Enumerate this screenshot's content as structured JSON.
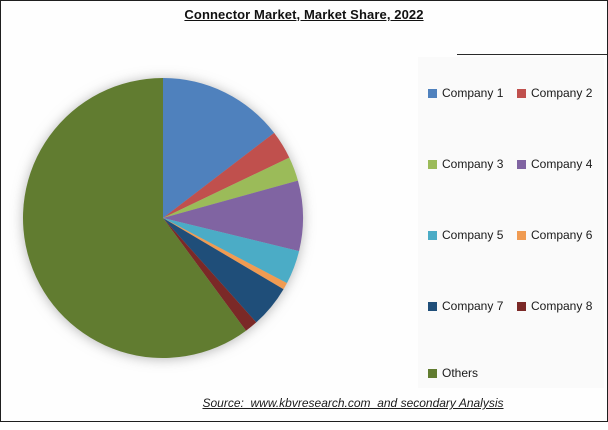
{
  "title": "Connector Market, Market Share, 2022",
  "source_note": "Source:  www.kbvresearch.com  and secondary Analysis",
  "legend": {
    "items": [
      {
        "label": "Company 1",
        "color": "#4F81BD"
      },
      {
        "label": "Company 2",
        "color": "#C0504D"
      },
      {
        "label": "Company 3",
        "color": "#9BBB59"
      },
      {
        "label": "Company 4",
        "color": "#8064A2"
      },
      {
        "label": "Company 5",
        "color": "#4BACC6"
      },
      {
        "label": "Company 6",
        "color": "#F09B52"
      },
      {
        "label": "Company 7",
        "color": "#1F4E79"
      },
      {
        "label": "Company 8",
        "color": "#7B2927"
      },
      {
        "label": "Others",
        "color": "#617C30"
      }
    ]
  },
  "chart_data": {
    "type": "pie",
    "title": "Connector Market, Market Share, 2022",
    "categories": [
      "Company 1",
      "Company 2",
      "Company 3",
      "Company 4",
      "Company 5",
      "Company 6",
      "Company 7",
      "Company 8",
      "Others"
    ],
    "values": [
      14.6,
      3.3,
      2.8,
      8.1,
      3.9,
      0.8,
      4.9,
      1.5,
      60.1
    ],
    "unit": "percent market share (estimated from slice angles)",
    "colors": [
      "#4F81BD",
      "#C0504D",
      "#9BBB59",
      "#8064A2",
      "#4BACC6",
      "#F09B52",
      "#1F4E79",
      "#7B2927",
      "#617C30"
    ],
    "start_angle_deg": 0,
    "direction": "clockwise",
    "legend_position": "right",
    "data_labels": false
  }
}
